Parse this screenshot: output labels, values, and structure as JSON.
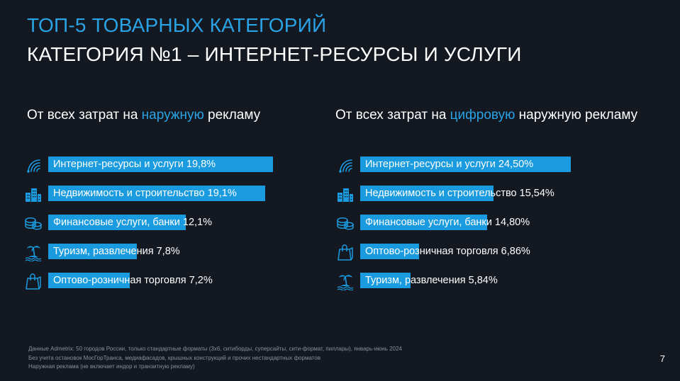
{
  "title": "ТОП-5 ТОВАРНЫХ КАТЕГОРИЙ",
  "subtitle": "КАТЕГОРИЯ №1 – ИНТЕРНЕТ-РЕСУРСЫ И УСЛУГИ",
  "colors": {
    "accent": "#29a3e6",
    "bar": "#1a9be0",
    "background": "#141820",
    "icon": "#1a9be0"
  },
  "page_number": "7",
  "footnotes": [
    "Данные Admetrix: 50 городов России, только стандартные форматы (3х6, ситиборды, суперсайты, сити-формат, пиллары), январь-июнь 2024",
    "Без учета остановок МосГорТранса, медиафасадов, крышных конструкций и прочих нестандартных форматов",
    "Наружная реклама (не включает индор и транзитную рекламу)"
  ],
  "chart_data": [
    {
      "type": "bar",
      "orientation": "horizontal",
      "title_parts": [
        "От всех затрат на ",
        "наружную",
        " рекламу"
      ],
      "unit": "%",
      "xlim": [
        0,
        20
      ],
      "categories": [
        "Интернет-ресурсы и услуги 19,8%",
        "Недвижимость и строительство 19,1%",
        "Финансовые услуги, банки 12,1%",
        "Туризм, развлечения 7,8%",
        "Оптово-розничная торговля 7,2%"
      ],
      "icons": [
        "wifi-icon",
        "buildings-icon",
        "coins-icon",
        "beach-palm-icon",
        "shopping-bag-icon"
      ],
      "values": [
        19.8,
        19.1,
        12.1,
        7.8,
        7.2
      ]
    },
    {
      "type": "bar",
      "orientation": "horizontal",
      "title_parts": [
        "От всех затрат на ",
        "цифровую",
        " наружную рекламу"
      ],
      "unit": "%",
      "xlim": [
        0,
        24.5
      ],
      "categories": [
        "Интернет-ресурсы и услуги 24,50%",
        "Недвижимость и строительство 15,54%",
        "Финансовые услуги, банки 14,80%",
        "Оптово-розничная торговля 6,86%",
        "Туризм, развлечения 5,84%"
      ],
      "icons": [
        "wifi-icon",
        "buildings-icon",
        "coins-icon",
        "shopping-bag-icon",
        "beach-palm-icon"
      ],
      "values": [
        24.5,
        15.54,
        14.8,
        6.86,
        5.84
      ]
    }
  ]
}
